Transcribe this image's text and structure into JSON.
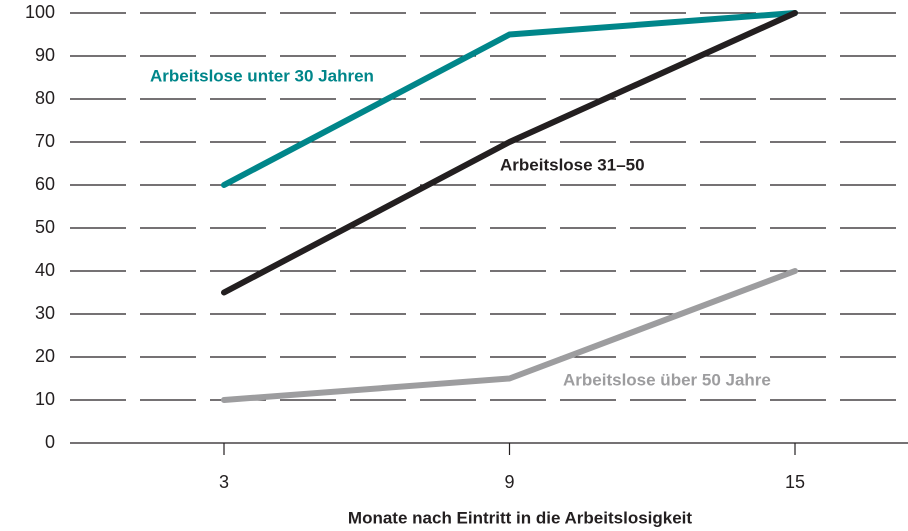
{
  "chart_data": {
    "type": "line",
    "xlabel": "Monate nach Eintritt in die Arbeitslosigkeit",
    "categories": [
      "3",
      "9",
      "15"
    ],
    "series": [
      {
        "name": "Arbeitslose unter 30 Jahren",
        "color": "#00868a",
        "values": [
          60,
          95,
          100
        ]
      },
      {
        "name": "Arbeitslose 31–50",
        "color": "#231f20",
        "values": [
          35,
          70,
          100
        ]
      },
      {
        "name": "Arbeitslose über 50 Jahre",
        "color": "#9d9d9f",
        "values": [
          10,
          15,
          40
        ]
      }
    ],
    "ylim": [
      0,
      100
    ],
    "yticks": [
      0,
      10,
      20,
      30,
      40,
      50,
      60,
      70,
      80,
      90,
      100
    ],
    "grid": true
  }
}
